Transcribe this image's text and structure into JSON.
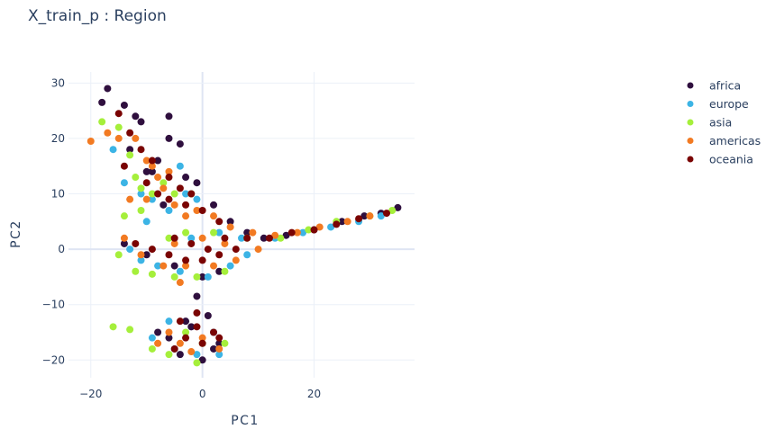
{
  "chart_data": {
    "type": "scatter",
    "title": "X_train_p : Region",
    "xlabel": "PC1",
    "ylabel": "PC2",
    "xlim": [
      -24,
      38
    ],
    "ylim": [
      -23.2,
      32
    ],
    "xticks": [
      -20,
      0,
      20
    ],
    "yticks": [
      -20,
      -10,
      0,
      10,
      20,
      30
    ],
    "grid": true,
    "legend": "right",
    "series": [
      {
        "name": "africa",
        "color": "#2f0f3e",
        "points": [
          [
            -17,
            29
          ],
          [
            -18,
            26.5
          ],
          [
            -14,
            26
          ],
          [
            -12,
            24
          ],
          [
            -11,
            23
          ],
          [
            -6,
            20
          ],
          [
            -13,
            18
          ],
          [
            -4,
            19
          ],
          [
            -10,
            14
          ],
          [
            -8,
            16
          ],
          [
            -3,
            13
          ],
          [
            -1,
            12
          ],
          [
            -7,
            8
          ],
          [
            2,
            8
          ],
          [
            5,
            5
          ],
          [
            8,
            3
          ],
          [
            11,
            2
          ],
          [
            15,
            2.5
          ],
          [
            20,
            3.5
          ],
          [
            25,
            5
          ],
          [
            29,
            6
          ],
          [
            32,
            6.5
          ],
          [
            35,
            7.5
          ],
          [
            -14,
            1
          ],
          [
            -10,
            -1
          ],
          [
            -5,
            -3
          ],
          [
            0,
            -5
          ],
          [
            3,
            -4
          ],
          [
            -1,
            -8.5
          ],
          [
            -3,
            -13
          ],
          [
            1,
            -12
          ],
          [
            -6,
            -16
          ],
          [
            -4,
            -19
          ],
          [
            2,
            -18
          ],
          [
            0,
            -20
          ],
          [
            3,
            -17
          ],
          [
            -8,
            -15
          ],
          [
            -2,
            -14
          ],
          [
            -6,
            24
          ],
          [
            -9,
            14
          ]
        ]
      },
      {
        "name": "europe",
        "color": "#3cb4e5",
        "points": [
          [
            -16,
            18
          ],
          [
            -14,
            12
          ],
          [
            -11,
            10
          ],
          [
            -9,
            9
          ],
          [
            -6,
            7
          ],
          [
            -3,
            10
          ],
          [
            -1,
            9
          ],
          [
            -4,
            15
          ],
          [
            -13,
            0
          ],
          [
            -11,
            -2
          ],
          [
            -8,
            -3
          ],
          [
            -4,
            -4
          ],
          [
            1,
            -5
          ],
          [
            5,
            -3
          ],
          [
            8,
            -1
          ],
          [
            -2,
            2
          ],
          [
            3,
            3
          ],
          [
            7,
            2
          ],
          [
            13,
            2
          ],
          [
            18,
            3
          ],
          [
            23,
            4
          ],
          [
            28,
            5
          ],
          [
            32,
            6
          ],
          [
            -9,
            -16
          ],
          [
            -5,
            -18
          ],
          [
            -1,
            -19
          ],
          [
            3,
            -19
          ],
          [
            2,
            -15
          ],
          [
            -6,
            -13
          ],
          [
            -10,
            5
          ]
        ]
      },
      {
        "name": "asia",
        "color": "#a5ef3b",
        "points": [
          [
            -18,
            23
          ],
          [
            -15,
            22
          ],
          [
            -13,
            17
          ],
          [
            -12,
            13
          ],
          [
            -14,
            6
          ],
          [
            -11,
            7
          ],
          [
            -9,
            10
          ],
          [
            -7,
            12
          ],
          [
            -5,
            10
          ],
          [
            -2,
            10
          ],
          [
            -15,
            -1
          ],
          [
            -12,
            -4
          ],
          [
            -9,
            -4.5
          ],
          [
            -5,
            -5
          ],
          [
            -1,
            -5
          ],
          [
            4,
            -4
          ],
          [
            -6,
            2
          ],
          [
            -3,
            3
          ],
          [
            2,
            3
          ],
          [
            8,
            2
          ],
          [
            14,
            2
          ],
          [
            19,
            3.5
          ],
          [
            24,
            5
          ],
          [
            30,
            6
          ],
          [
            34,
            7
          ],
          [
            -16,
            -14
          ],
          [
            -13,
            -14.5
          ],
          [
            -9,
            -18
          ],
          [
            -6,
            -19
          ],
          [
            -1,
            -20.5
          ],
          [
            4,
            -17
          ],
          [
            -3,
            -15
          ],
          [
            -11,
            11
          ],
          [
            0,
            -17
          ]
        ]
      },
      {
        "name": "americas",
        "color": "#f27a22",
        "points": [
          [
            -20,
            19.5
          ],
          [
            -17,
            21
          ],
          [
            -15,
            20
          ],
          [
            -12,
            20
          ],
          [
            -9,
            15
          ],
          [
            -8,
            13
          ],
          [
            -6,
            14
          ],
          [
            -7,
            11
          ],
          [
            -10,
            9
          ],
          [
            -13,
            9
          ],
          [
            -5,
            8
          ],
          [
            -3,
            6
          ],
          [
            -1,
            7
          ],
          [
            2,
            6
          ],
          [
            5,
            4
          ],
          [
            9,
            3
          ],
          [
            13,
            2.5
          ],
          [
            17,
            3
          ],
          [
            21,
            4
          ],
          [
            26,
            5
          ],
          [
            30,
            6
          ],
          [
            -14,
            2
          ],
          [
            -11,
            -1
          ],
          [
            -7,
            -3
          ],
          [
            -3,
            -3
          ],
          [
            2,
            -3
          ],
          [
            6,
            -2
          ],
          [
            10,
            0
          ],
          [
            -5,
            1
          ],
          [
            0,
            2
          ],
          [
            4,
            1
          ],
          [
            -8,
            -17
          ],
          [
            -4,
            -17
          ],
          [
            0,
            -16
          ],
          [
            3,
            -18
          ],
          [
            -2,
            -18.5
          ],
          [
            -6,
            -15
          ],
          [
            -10,
            16
          ],
          [
            -4,
            -6
          ]
        ]
      },
      {
        "name": "oceania",
        "color": "#7a0403",
        "points": [
          [
            -15,
            24.5
          ],
          [
            -13,
            21
          ],
          [
            -11,
            18
          ],
          [
            -9,
            16
          ],
          [
            -6,
            13
          ],
          [
            -4,
            11
          ],
          [
            -2,
            10
          ],
          [
            -8,
            10
          ],
          [
            -10,
            12
          ],
          [
            -6,
            9
          ],
          [
            -3,
            8
          ],
          [
            0,
            7
          ],
          [
            3,
            5
          ],
          [
            -12,
            1
          ],
          [
            -9,
            0
          ],
          [
            -6,
            -1
          ],
          [
            -3,
            -2
          ],
          [
            0,
            -2
          ],
          [
            3,
            -1
          ],
          [
            6,
            0
          ],
          [
            -5,
            2
          ],
          [
            -2,
            1
          ],
          [
            1,
            0
          ],
          [
            4,
            2
          ],
          [
            8,
            2
          ],
          [
            12,
            2
          ],
          [
            16,
            3
          ],
          [
            20,
            3.5
          ],
          [
            24,
            4.5
          ],
          [
            28,
            5.5
          ],
          [
            33,
            6.5
          ],
          [
            -4,
            -13
          ],
          [
            -1,
            -14
          ],
          [
            2,
            -15
          ],
          [
            -3,
            -16
          ],
          [
            0,
            -17
          ],
          [
            -5,
            -18
          ],
          [
            3,
            -16
          ],
          [
            -1,
            -11.5
          ],
          [
            -14,
            15
          ]
        ]
      }
    ],
    "legend_entries": [
      "africa",
      "europe",
      "asia",
      "americas",
      "oceania"
    ]
  }
}
